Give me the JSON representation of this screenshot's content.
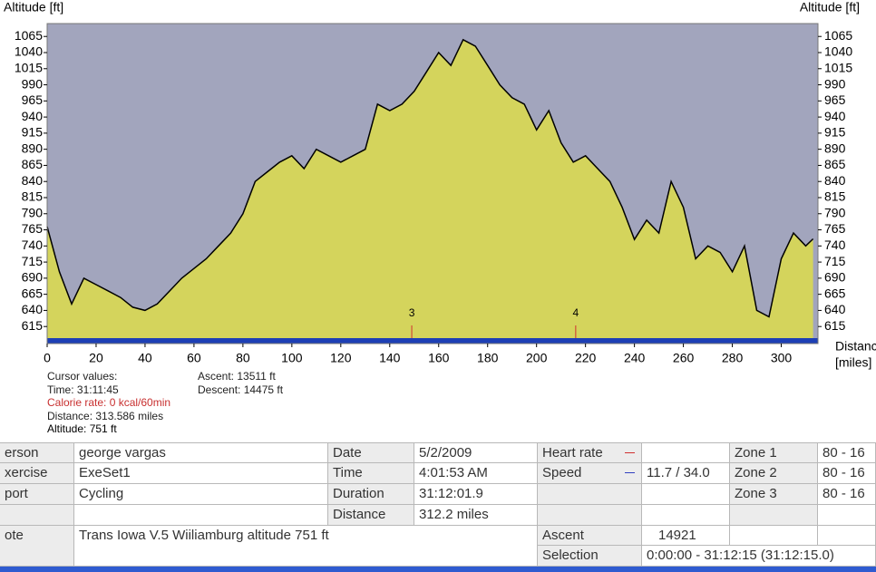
{
  "chart_data": {
    "type": "area",
    "y_label": "Altitude [ft]",
    "y2_label": "Altitude [ft]",
    "x_label": [
      "Distance",
      "[miles]"
    ],
    "x": [
      0,
      5,
      10,
      15,
      20,
      25,
      30,
      35,
      40,
      45,
      50,
      55,
      60,
      65,
      70,
      75,
      80,
      85,
      90,
      95,
      100,
      105,
      110,
      115,
      120,
      125,
      130,
      135,
      140,
      145,
      150,
      155,
      160,
      165,
      170,
      175,
      180,
      185,
      190,
      195,
      200,
      205,
      210,
      215,
      220,
      225,
      230,
      235,
      240,
      245,
      250,
      255,
      260,
      265,
      270,
      275,
      280,
      285,
      290,
      295,
      300,
      305,
      310,
      313
    ],
    "values": [
      770,
      700,
      650,
      690,
      680,
      670,
      660,
      645,
      640,
      650,
      670,
      690,
      705,
      720,
      740,
      760,
      790,
      840,
      855,
      870,
      880,
      860,
      890,
      880,
      870,
      880,
      890,
      960,
      950,
      960,
      980,
      1010,
      1040,
      1020,
      1060,
      1050,
      1020,
      990,
      970,
      960,
      920,
      950,
      900,
      870,
      880,
      860,
      840,
      800,
      750,
      780,
      760,
      840,
      800,
      720,
      740,
      730,
      700,
      740,
      640,
      630,
      720,
      760,
      740,
      751
    ],
    "color": "#000000",
    "fill": "#d4d45c",
    "background": "#a2a5bd",
    "xlim": [
      0,
      315
    ],
    "xticks": [
      0,
      20,
      40,
      60,
      80,
      100,
      120,
      140,
      160,
      180,
      200,
      220,
      240,
      260,
      280,
      300
    ],
    "ylim": [
      597,
      1085
    ],
    "yticks": [
      615,
      640,
      665,
      690,
      715,
      740,
      765,
      790,
      815,
      840,
      865,
      890,
      915,
      940,
      965,
      990,
      1015,
      1040,
      1065
    ],
    "markers": [
      {
        "x": 149,
        "label": "3"
      },
      {
        "x": 216,
        "label": "4"
      }
    ]
  },
  "cursor": {
    "title": "Cursor values:",
    "lines": [
      "Time: 31:11:45",
      "Calorie rate: 0 kcal/60min",
      "Distance: 313.586 miles",
      "Altitude: 751 ft"
    ],
    "stats": [
      "Ascent: 13511 ft",
      "Descent: 14475 ft"
    ]
  },
  "info": {
    "left": [
      [
        "erson",
        "george vargas"
      ],
      [
        "xercise",
        "ExeSet1"
      ],
      [
        "port",
        "Cycling"
      ],
      [
        "ote",
        "Trans Iowa V.5 Wiiliamburg altitude 751 ft"
      ]
    ],
    "mid": [
      [
        "Date",
        "5/2/2009"
      ],
      [
        "Time",
        "4:01:53 AM"
      ],
      [
        "Duration",
        "31:12:01.9"
      ],
      [
        "Distance",
        "312.2 miles"
      ]
    ],
    "right": [
      [
        "Heart rate"
      ],
      [
        "Speed",
        "11.7 / 34.0"
      ],
      [
        "Ascent",
        "14921"
      ],
      [
        "Selection",
        "0:00:00 - 31:12:15 (31:12:15.0)"
      ]
    ],
    "zones": [
      [
        "Zone 1",
        "80 - 16"
      ],
      [
        "Zone 2",
        "80 - 16"
      ],
      [
        "Zone 3",
        "80 - 16"
      ]
    ]
  }
}
